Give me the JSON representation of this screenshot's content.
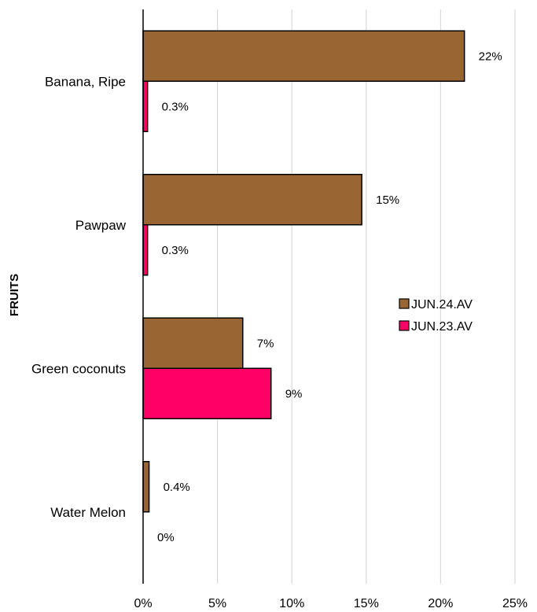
{
  "chart_data": {
    "type": "bar",
    "orientation": "horizontal",
    "title": "",
    "ylabel": "FRUITS",
    "xlabel": "",
    "categories": [
      "Banana, Ripe",
      "Pawpaw",
      "Green coconuts",
      "Water Melon"
    ],
    "series": [
      {
        "name": "JUN.24.AV",
        "color": "#996633",
        "values": [
          21.6,
          14.7,
          6.7,
          0.4
        ],
        "labels": [
          "22%",
          "15%",
          "7%",
          "0.4%"
        ]
      },
      {
        "name": "JUN.23.AV",
        "color": "#ff0066",
        "values": [
          0.3,
          0.3,
          8.6,
          0
        ],
        "labels": [
          "0.3%",
          "0.3%",
          "9%",
          "0%"
        ]
      }
    ],
    "xlim": [
      0,
      25
    ],
    "xticks": [
      0,
      5,
      10,
      15,
      20,
      25
    ],
    "xtick_labels": [
      "0%",
      "5%",
      "10%",
      "15%",
      "20%",
      "25%"
    ],
    "grid": true,
    "legend": "right"
  }
}
